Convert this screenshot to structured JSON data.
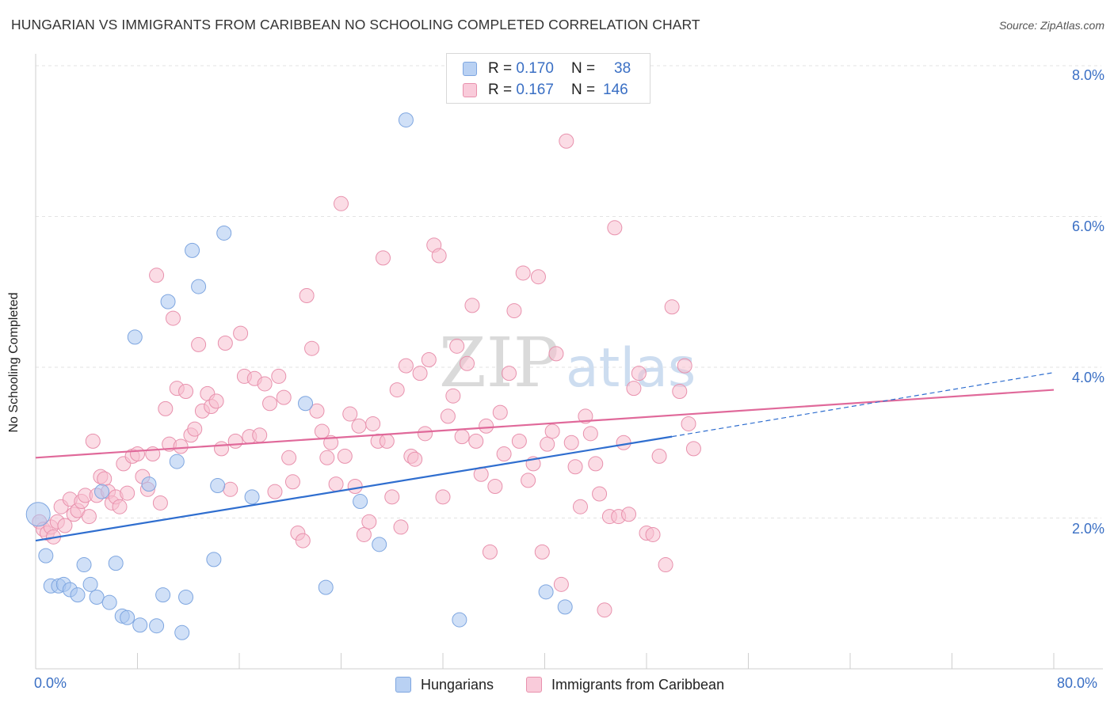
{
  "header": {
    "title": "HUNGARIAN VS IMMIGRANTS FROM CARIBBEAN NO SCHOOLING COMPLETED CORRELATION CHART",
    "source": "Source: ZipAtlas.com"
  },
  "watermark": {
    "zip": "ZIP",
    "atlas": "atlas"
  },
  "legend": {
    "rows": [
      {
        "r_label": "R =",
        "r_value": "0.170",
        "n_label": "N =",
        "n_value": "38"
      },
      {
        "r_label": "R =",
        "r_value": "0.167",
        "n_label": "N =",
        "n_value": "146"
      }
    ]
  },
  "bottom_legend": {
    "hungarians": "Hungarians",
    "caribbean": "Immigrants from Caribbean"
  },
  "axes": {
    "ylabel": "No Schooling Completed",
    "x_min_label": "0.0%",
    "x_max_label": "80.0%",
    "y_ticks": [
      "2.0%",
      "4.0%",
      "6.0%",
      "8.0%"
    ]
  },
  "colors": {
    "blue_fill": "#a9c6f0",
    "blue_stroke": "#7ea6e0",
    "blue_line": "#2f6ecf",
    "pink_fill": "#f7bfd0",
    "pink_stroke": "#e891ad",
    "pink_line": "#e0699a",
    "tick_label": "#3a6fc4"
  },
  "chart_data": {
    "type": "scatter",
    "xlim": [
      0,
      80
    ],
    "ylim": [
      0,
      8
    ],
    "x_unit": "%",
    "y_unit": "%",
    "grid": "horizontal dashed",
    "series": [
      {
        "name": "Hungarians",
        "points": [
          [
            0.2,
            2.05
          ],
          [
            0.8,
            1.5
          ],
          [
            1.2,
            1.1
          ],
          [
            1.8,
            1.1
          ],
          [
            2.2,
            1.12
          ],
          [
            2.7,
            1.05
          ],
          [
            3.3,
            0.98
          ],
          [
            3.8,
            1.38
          ],
          [
            4.3,
            1.12
          ],
          [
            4.8,
            0.95
          ],
          [
            5.2,
            2.35
          ],
          [
            5.8,
            0.88
          ],
          [
            6.3,
            1.4
          ],
          [
            6.8,
            0.7
          ],
          [
            7.2,
            0.68
          ],
          [
            7.8,
            4.4
          ],
          [
            8.2,
            0.58
          ],
          [
            8.9,
            2.45
          ],
          [
            9.5,
            0.57
          ],
          [
            10.0,
            0.98
          ],
          [
            10.4,
            4.87
          ],
          [
            11.1,
            2.75
          ],
          [
            11.5,
            0.48
          ],
          [
            11.8,
            0.95
          ],
          [
            12.3,
            5.55
          ],
          [
            12.8,
            5.07
          ],
          [
            14.0,
            1.45
          ],
          [
            14.3,
            2.43
          ],
          [
            14.8,
            5.78
          ],
          [
            17.0,
            2.28
          ],
          [
            21.2,
            3.52
          ],
          [
            22.8,
            1.08
          ],
          [
            25.5,
            2.22
          ],
          [
            27.0,
            1.65
          ],
          [
            29.1,
            7.28
          ],
          [
            33.3,
            0.65
          ],
          [
            40.1,
            1.02
          ],
          [
            41.6,
            0.82
          ]
        ]
      },
      {
        "name": "Immigrants from Caribbean",
        "points": [
          [
            0.3,
            1.95
          ],
          [
            0.6,
            1.85
          ],
          [
            0.9,
            1.8
          ],
          [
            1.2,
            1.88
          ],
          [
            1.4,
            1.75
          ],
          [
            1.7,
            1.95
          ],
          [
            2.0,
            2.15
          ],
          [
            2.3,
            1.9
          ],
          [
            2.7,
            2.25
          ],
          [
            3.0,
            2.05
          ],
          [
            3.3,
            2.1
          ],
          [
            3.6,
            2.22
          ],
          [
            3.9,
            2.3
          ],
          [
            4.2,
            2.02
          ],
          [
            4.5,
            3.02
          ],
          [
            4.8,
            2.3
          ],
          [
            5.1,
            2.55
          ],
          [
            5.4,
            2.52
          ],
          [
            5.7,
            2.35
          ],
          [
            6.0,
            2.2
          ],
          [
            6.3,
            2.28
          ],
          [
            6.6,
            2.15
          ],
          [
            6.9,
            2.72
          ],
          [
            7.2,
            2.33
          ],
          [
            7.6,
            2.82
          ],
          [
            8.0,
            2.85
          ],
          [
            8.4,
            2.55
          ],
          [
            8.8,
            2.38
          ],
          [
            9.2,
            2.85
          ],
          [
            9.5,
            5.22
          ],
          [
            9.8,
            2.2
          ],
          [
            10.2,
            3.45
          ],
          [
            10.5,
            2.98
          ],
          [
            10.8,
            4.65
          ],
          [
            11.1,
            3.72
          ],
          [
            11.4,
            2.95
          ],
          [
            11.8,
            3.68
          ],
          [
            12.2,
            3.1
          ],
          [
            12.5,
            3.18
          ],
          [
            12.8,
            4.3
          ],
          [
            13.1,
            3.42
          ],
          [
            13.5,
            3.65
          ],
          [
            13.8,
            3.48
          ],
          [
            14.2,
            3.55
          ],
          [
            14.6,
            2.92
          ],
          [
            14.9,
            4.32
          ],
          [
            15.3,
            2.38
          ],
          [
            15.7,
            3.02
          ],
          [
            16.1,
            4.45
          ],
          [
            16.4,
            3.88
          ],
          [
            16.8,
            3.08
          ],
          [
            17.2,
            3.85
          ],
          [
            17.6,
            3.1
          ],
          [
            18.0,
            3.78
          ],
          [
            18.4,
            3.52
          ],
          [
            18.8,
            2.35
          ],
          [
            19.1,
            3.88
          ],
          [
            19.5,
            3.6
          ],
          [
            19.9,
            2.8
          ],
          [
            20.2,
            2.48
          ],
          [
            20.6,
            1.8
          ],
          [
            21.0,
            1.7
          ],
          [
            21.3,
            4.95
          ],
          [
            21.7,
            4.25
          ],
          [
            22.1,
            3.42
          ],
          [
            22.5,
            3.15
          ],
          [
            22.9,
            2.8
          ],
          [
            23.2,
            3.0
          ],
          [
            23.6,
            2.45
          ],
          [
            24.0,
            6.17
          ],
          [
            24.3,
            2.82
          ],
          [
            24.7,
            3.38
          ],
          [
            25.1,
            2.42
          ],
          [
            25.4,
            3.22
          ],
          [
            25.8,
            1.78
          ],
          [
            26.2,
            1.95
          ],
          [
            26.5,
            3.25
          ],
          [
            26.9,
            3.02
          ],
          [
            27.3,
            5.45
          ],
          [
            27.6,
            3.02
          ],
          [
            28.0,
            2.28
          ],
          [
            28.4,
            3.7
          ],
          [
            28.7,
            1.88
          ],
          [
            29.1,
            4.02
          ],
          [
            29.5,
            2.82
          ],
          [
            29.8,
            2.78
          ],
          [
            30.2,
            3.92
          ],
          [
            30.6,
            3.12
          ],
          [
            30.9,
            4.1
          ],
          [
            31.3,
            5.62
          ],
          [
            31.7,
            5.48
          ],
          [
            32.0,
            2.28
          ],
          [
            32.4,
            3.35
          ],
          [
            32.8,
            3.62
          ],
          [
            33.1,
            4.28
          ],
          [
            33.5,
            3.08
          ],
          [
            33.9,
            4.05
          ],
          [
            34.3,
            4.82
          ],
          [
            34.6,
            3.02
          ],
          [
            35.0,
            2.58
          ],
          [
            35.4,
            3.22
          ],
          [
            35.7,
            1.55
          ],
          [
            36.1,
            2.42
          ],
          [
            36.5,
            3.4
          ],
          [
            36.8,
            2.85
          ],
          [
            37.2,
            3.92
          ],
          [
            37.6,
            4.75
          ],
          [
            38.0,
            3.02
          ],
          [
            38.3,
            5.25
          ],
          [
            38.7,
            2.5
          ],
          [
            39.1,
            2.72
          ],
          [
            39.5,
            5.2
          ],
          [
            39.8,
            1.55
          ],
          [
            40.2,
            2.98
          ],
          [
            40.6,
            3.15
          ],
          [
            40.9,
            4.18
          ],
          [
            41.3,
            1.12
          ],
          [
            41.7,
            7.0
          ],
          [
            42.1,
            3.0
          ],
          [
            42.4,
            2.68
          ],
          [
            42.8,
            2.15
          ],
          [
            43.2,
            3.35
          ],
          [
            43.6,
            3.12
          ],
          [
            44.0,
            2.72
          ],
          [
            44.3,
            2.32
          ],
          [
            44.7,
            0.78
          ],
          [
            45.1,
            2.02
          ],
          [
            45.5,
            5.85
          ],
          [
            45.8,
            2.02
          ],
          [
            46.2,
            3.0
          ],
          [
            46.6,
            2.05
          ],
          [
            47.0,
            3.72
          ],
          [
            47.4,
            3.92
          ],
          [
            48.0,
            1.8
          ],
          [
            48.5,
            1.78
          ],
          [
            49.0,
            2.82
          ],
          [
            49.5,
            1.38
          ],
          [
            50.0,
            4.8
          ],
          [
            50.6,
            3.68
          ],
          [
            51.0,
            4.02
          ],
          [
            51.3,
            3.25
          ],
          [
            51.7,
            2.92
          ]
        ]
      }
    ],
    "trend_lines": [
      {
        "series": "Hungarians",
        "x": [
          0,
          50
        ],
        "y": [
          1.7,
          3.08
        ],
        "extended_to": [
          80,
          3.93
        ]
      },
      {
        "series": "Immigrants from Caribbean",
        "x": [
          0,
          80
        ],
        "y": [
          2.8,
          3.7
        ]
      }
    ]
  }
}
